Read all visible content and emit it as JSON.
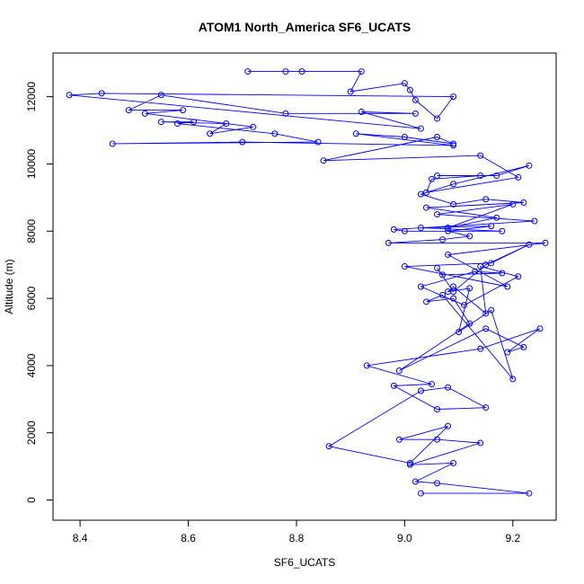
{
  "chart_data": {
    "type": "line",
    "title": "ATOM1 North_America SF6_UCATS",
    "xlabel": "SF6_UCATS",
    "ylabel": "Altitude (m)",
    "xlim": [
      8.35,
      9.28
    ],
    "ylim": [
      -600,
      13300
    ],
    "xticks": [
      8.4,
      8.6,
      8.8,
      9.0,
      9.2
    ],
    "xtick_labels": [
      "8.4",
      "8.6",
      "8.8",
      "9.0",
      "9.2"
    ],
    "yticks": [
      0,
      2000,
      4000,
      6000,
      8000,
      10000,
      12000
    ],
    "ytick_labels": [
      "0",
      "2000",
      "4000",
      "6000",
      "8000",
      "10000",
      "12000"
    ],
    "grid": false,
    "legend": "none",
    "series_color": "#0000ff",
    "marker": "open-circle",
    "series": [
      {
        "x": [
          9.03,
          9.23,
          9.06,
          9.02,
          9.09,
          9.01,
          9.14,
          9.06,
          8.99,
          9.08,
          9.01,
          8.86,
          9.03,
          9.08,
          9.15,
          9.06,
          8.98,
          9.05,
          8.93,
          9.14,
          9.25,
          9.19,
          9.22,
          9.15,
          8.99,
          9.12,
          9.09,
          9.04,
          9.07,
          9.2,
          9.16,
          9.1,
          9.12,
          9.08,
          9.09,
          9.15,
          9.14,
          9.21,
          9.11,
          9.03,
          9.13,
          9.18,
          9.07,
          9.06,
          9.09,
          9.15,
          9.23,
          9.16,
          9.0,
          9.19,
          9.08,
          9.26,
          8.97,
          9.07,
          9.12,
          9.08,
          9.16,
          9.03,
          9.18,
          9.0,
          8.98,
          9.24,
          9.06,
          9.2,
          9.08,
          9.17,
          9.04,
          9.22,
          9.15,
          9.09,
          9.03,
          9.09,
          9.23,
          9.17,
          9.06,
          9.14,
          9.05,
          9.04,
          9.21,
          9.14,
          8.85,
          9.06,
          9.09,
          9.0,
          8.91,
          9.09,
          8.7,
          8.46,
          8.84,
          8.76,
          8.58,
          8.61,
          8.55,
          8.67,
          8.64,
          8.72,
          8.52,
          8.59,
          8.49,
          8.55,
          8.78,
          9.02,
          8.92,
          9.03,
          8.38,
          8.44,
          9.09,
          9.06,
          9.02,
          9.01,
          9.0,
          8.9,
          8.92,
          8.81,
          8.78,
          8.71
        ],
        "y": [
          200,
          200,
          500,
          550,
          1100,
          1050,
          1700,
          1800,
          1800,
          2200,
          1100,
          1600,
          3250,
          3350,
          2750,
          2700,
          3400,
          3450,
          4000,
          4500,
          5100,
          4400,
          4550,
          5100,
          3850,
          5250,
          6000,
          5900,
          6100,
          3600,
          5650,
          5000,
          6300,
          6200,
          6350,
          5550,
          6950,
          6650,
          5800,
          6350,
          6800,
          6750,
          6700,
          6900,
          6200,
          7000,
          7600,
          7050,
          6950,
          6350,
          7300,
          7650,
          7650,
          7750,
          7850,
          8000,
          8150,
          8100,
          8000,
          8000,
          8050,
          8300,
          8500,
          8800,
          8100,
          8400,
          8700,
          8850,
          8950,
          8800,
          9100,
          9400,
          9950,
          9650,
          9650,
          9650,
          9550,
          9150,
          9600,
          10250,
          10100,
          10800,
          10600,
          10800,
          10900,
          10550,
          10650,
          10600,
          10650,
          10900,
          11200,
          11250,
          11250,
          11200,
          10900,
          11100,
          11500,
          11600,
          11600,
          12050,
          11500,
          11500,
          11550,
          11050,
          12050,
          12100,
          12000,
          11350,
          11900,
          12200,
          12400,
          12150,
          12750,
          12750,
          12750,
          12750
        ]
      }
    ]
  }
}
